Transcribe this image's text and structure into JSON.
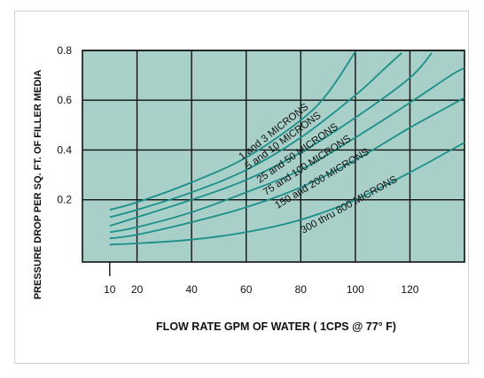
{
  "chart_data": {
    "type": "line",
    "title": "",
    "xlabel": "FLOW RATE GPM OF WATER ( 1CPS @ 77° F)",
    "ylabel": "PRESSURE DROP PER SQ. FT. OF FILLER MEDIA",
    "xlim": [
      0,
      140
    ],
    "ylim": [
      -0.05,
      0.8
    ],
    "x_ticks": [
      10,
      20,
      40,
      60,
      80,
      100,
      120
    ],
    "y_ticks": [
      0.2,
      0.4,
      0.6,
      0.8
    ],
    "grid": true,
    "legend": "none",
    "colors": {
      "plot_background": "#a8cfc8",
      "grid": "#111111",
      "curve": "#1c8f8a"
    },
    "series": [
      {
        "name": "1 and 3 MICRONS",
        "points": [
          [
            10,
            0.16
          ],
          [
            20,
            0.19
          ],
          [
            40,
            0.27
          ],
          [
            60,
            0.37
          ],
          [
            80,
            0.52
          ],
          [
            90,
            0.63
          ],
          [
            100,
            0.795
          ]
        ]
      },
      {
        "name": "5 and 10 MICRONS",
        "points": [
          [
            10,
            0.13
          ],
          [
            20,
            0.16
          ],
          [
            40,
            0.23
          ],
          [
            60,
            0.32
          ],
          [
            80,
            0.45
          ],
          [
            100,
            0.62
          ],
          [
            110,
            0.72
          ],
          [
            117,
            0.79
          ]
        ]
      },
      {
        "name": "25 and 50 MICRONS",
        "points": [
          [
            10,
            0.095
          ],
          [
            20,
            0.13
          ],
          [
            40,
            0.2
          ],
          [
            60,
            0.28
          ],
          [
            80,
            0.39
          ],
          [
            100,
            0.53
          ],
          [
            120,
            0.69
          ],
          [
            128,
            0.79
          ]
        ]
      },
      {
        "name": "75 and 100 MICRONS",
        "points": [
          [
            10,
            0.07
          ],
          [
            20,
            0.09
          ],
          [
            40,
            0.15
          ],
          [
            60,
            0.23
          ],
          [
            80,
            0.32
          ],
          [
            100,
            0.45
          ],
          [
            120,
            0.59
          ],
          [
            135,
            0.7
          ],
          [
            140,
            0.73
          ]
        ]
      },
      {
        "name": "150 and 200 MICRONS",
        "points": [
          [
            10,
            0.045
          ],
          [
            20,
            0.06
          ],
          [
            40,
            0.11
          ],
          [
            60,
            0.17
          ],
          [
            80,
            0.25
          ],
          [
            100,
            0.36
          ],
          [
            120,
            0.49
          ],
          [
            135,
            0.58
          ],
          [
            140,
            0.61
          ]
        ]
      },
      {
        "name": "300 thru 800 MICRONS",
        "points": [
          [
            10,
            0.02
          ],
          [
            20,
            0.025
          ],
          [
            40,
            0.04
          ],
          [
            60,
            0.07
          ],
          [
            80,
            0.12
          ],
          [
            100,
            0.2
          ],
          [
            120,
            0.31
          ],
          [
            135,
            0.4
          ],
          [
            140,
            0.43
          ]
        ]
      }
    ]
  }
}
